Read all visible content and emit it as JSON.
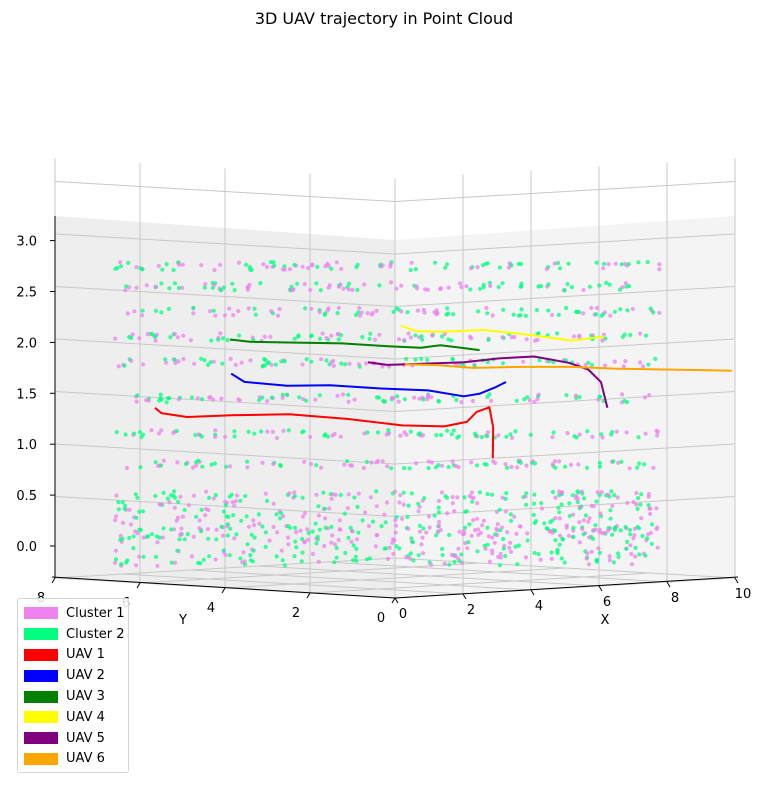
{
  "chart_data": {
    "type": "scatter",
    "title": "3D UAV trajectory in Point Cloud",
    "xlabel": "X",
    "ylabel": "Y",
    "zlabel": "",
    "xlim": [
      0,
      10
    ],
    "ylim": [
      0,
      8
    ],
    "zlim": [
      -0.3,
      3.0
    ],
    "x_ticks": [
      "0",
      "2",
      "4",
      "6",
      "8",
      "10"
    ],
    "y_ticks": [
      "8",
      "6",
      "4",
      "2",
      "0"
    ],
    "z_ticks": [
      "0.0",
      "0.5",
      "1.0",
      "1.5",
      "2.0",
      "2.5",
      "3.0"
    ],
    "grid": true,
    "legend_position": "bottom-left",
    "point_cloud": {
      "layers_z": [
        0.0,
        0.25,
        0.5,
        0.8,
        1.1,
        1.45,
        1.8,
        2.05,
        2.3,
        2.55,
        2.75
      ],
      "x_range": [
        0,
        10
      ],
      "y_range": [
        0,
        8
      ]
    },
    "series": [
      {
        "name": "Cluster 1",
        "color": "#ee82ee",
        "kind": "points"
      },
      {
        "name": "Cluster 2",
        "color": "#00ff7f",
        "kind": "points"
      },
      {
        "name": "UAV 1",
        "color": "#ff0000",
        "kind": "trajectory",
        "x": [
          0.0,
          0.1,
          0.5,
          1.2,
          2.0,
          3.0,
          4.0,
          4.8,
          5.2,
          5.4,
          5.6,
          5.8,
          5.7
        ],
        "y": [
          8.0,
          7.9,
          7.5,
          6.8,
          5.8,
          5.0,
          4.3,
          3.8,
          3.5,
          3.4,
          3.2,
          3.3,
          3.2
        ],
        "z": [
          1.2,
          1.15,
          1.12,
          1.15,
          1.18,
          1.15,
          1.1,
          1.1,
          1.15,
          1.25,
          1.3,
          1.1,
          0.8
        ]
      },
      {
        "name": "UAV 2",
        "color": "#0000ff",
        "kind": "trajectory",
        "x": [
          0.3,
          0.6,
          1.5,
          2.5,
          3.5,
          4.5,
          5.2,
          5.5,
          5.8,
          6.0
        ],
        "y": [
          5.8,
          5.7,
          5.3,
          5.0,
          4.5,
          4.0,
          3.6,
          3.4,
          3.2,
          3.1
        ],
        "z": [
          1.58,
          1.5,
          1.47,
          1.48,
          1.46,
          1.45,
          1.4,
          1.43,
          1.5,
          1.55
        ]
      },
      {
        "name": "UAV 3",
        "color": "#008000",
        "kind": "trajectory",
        "x": [
          0.0,
          0.5,
          1.5,
          2.5,
          3.5,
          4.2,
          4.6,
          5.0,
          5.4
        ],
        "y": [
          5.5,
          5.4,
          5.0,
          4.6,
          4.2,
          3.9,
          3.7,
          3.5,
          3.3
        ],
        "z": [
          1.92,
          1.9,
          1.9,
          1.9,
          1.88,
          1.87,
          1.9,
          1.88,
          1.86
        ]
      },
      {
        "name": "UAV 4",
        "color": "#ffff00",
        "kind": "trajectory",
        "x": [
          3.0,
          3.3,
          3.8,
          4.5,
          5.2,
          6.0,
          6.5
        ],
        "y": [
          3.2,
          3.0,
          2.7,
          2.2,
          1.6,
          0.9,
          0.4
        ],
        "z": [
          2.1,
          2.05,
          2.05,
          2.08,
          2.05,
          2.0,
          2.05
        ]
      },
      {
        "name": "UAV 5",
        "color": "#800080",
        "kind": "trajectory",
        "x": [
          3.0,
          3.3,
          3.8,
          4.5,
          5.0,
          5.5,
          6.0,
          6.3,
          6.5,
          6.6
        ],
        "y": [
          4.3,
          4.0,
          3.5,
          2.8,
          2.2,
          1.6,
          1.0,
          0.7,
          0.5,
          0.4
        ],
        "z": [
          1.72,
          1.7,
          1.72,
          1.75,
          1.8,
          1.83,
          1.78,
          1.72,
          1.6,
          1.35
        ]
      },
      {
        "name": "UAV 6",
        "color": "#ffa500",
        "kind": "trajectory",
        "x": [
          3.2,
          3.8,
          4.5,
          5.5,
          6.5,
          7.5,
          8.5,
          9.5,
          10.0
        ],
        "y": [
          3.3,
          2.9,
          2.5,
          2.0,
          1.5,
          1.1,
          0.7,
          0.3,
          0.1
        ],
        "z": [
          1.72,
          1.72,
          1.7,
          1.72,
          1.73,
          1.72,
          1.72,
          1.72,
          1.72
        ]
      }
    ]
  }
}
